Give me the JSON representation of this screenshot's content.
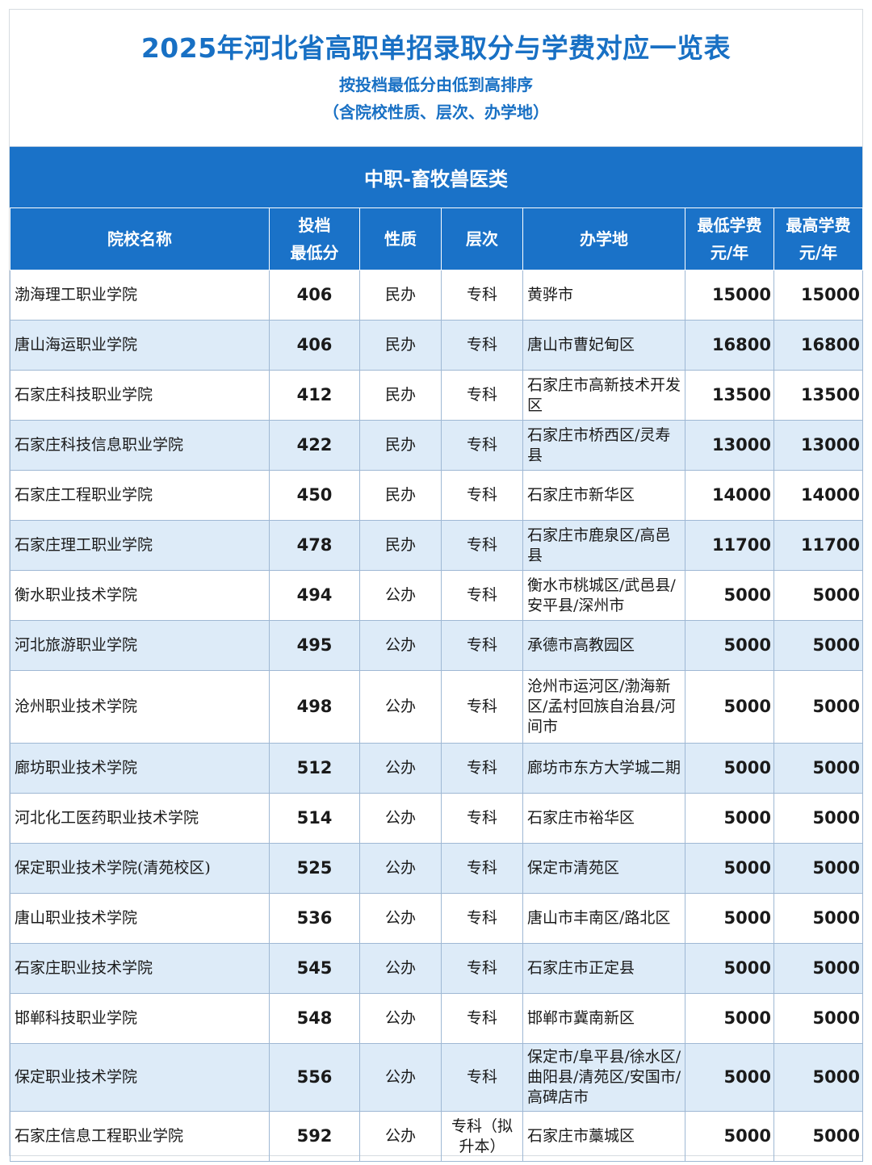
{
  "header": {
    "title": "2025年河北省高职单招录取分与学费对应一览表",
    "subtitle": "按投档最低分由低到高排序",
    "note": "（含院校性质、层次、办学地）"
  },
  "category": "中职-畜牧兽医类",
  "columns": {
    "name": "院校名称",
    "score_line1": "投档",
    "score_line2": "最低分",
    "nature": "性质",
    "level": "层次",
    "location": "办学地",
    "min_fee_line1": "最低学费",
    "min_fee_line2": "元/年",
    "max_fee_line1": "最高学费",
    "max_fee_line2": "元/年"
  },
  "rows": [
    {
      "name": "渤海理工职业学院",
      "score": "406",
      "nature": "民办",
      "level": "专科",
      "location": "黄骅市",
      "min_fee": "15000",
      "max_fee": "15000"
    },
    {
      "name": "唐山海运职业学院",
      "score": "406",
      "nature": "民办",
      "level": "专科",
      "location": "唐山市曹妃甸区",
      "min_fee": "16800",
      "max_fee": "16800"
    },
    {
      "name": "石家庄科技职业学院",
      "score": "412",
      "nature": "民办",
      "level": "专科",
      "location": "石家庄市高新技术开发区",
      "min_fee": "13500",
      "max_fee": "13500"
    },
    {
      "name": "石家庄科技信息职业学院",
      "score": "422",
      "nature": "民办",
      "level": "专科",
      "location": "石家庄市桥西区/灵寿县",
      "min_fee": "13000",
      "max_fee": "13000"
    },
    {
      "name": "石家庄工程职业学院",
      "score": "450",
      "nature": "民办",
      "level": "专科",
      "location": "石家庄市新华区",
      "min_fee": "14000",
      "max_fee": "14000"
    },
    {
      "name": "石家庄理工职业学院",
      "score": "478",
      "nature": "民办",
      "level": "专科",
      "location": "石家庄市鹿泉区/高邑县",
      "min_fee": "11700",
      "max_fee": "11700"
    },
    {
      "name": "衡水职业技术学院",
      "score": "494",
      "nature": "公办",
      "level": "专科",
      "location": "衡水市桃城区/武邑县/安平县/深州市",
      "min_fee": "5000",
      "max_fee": "5000"
    },
    {
      "name": "河北旅游职业学院",
      "score": "495",
      "nature": "公办",
      "level": "专科",
      "location": "承德市高教园区",
      "min_fee": "5000",
      "max_fee": "5000"
    },
    {
      "name": "沧州职业技术学院",
      "score": "498",
      "nature": "公办",
      "level": "专科",
      "location": "沧州市运河区/渤海新区/孟村回族自治县/河间市",
      "min_fee": "5000",
      "max_fee": "5000"
    },
    {
      "name": "廊坊职业技术学院",
      "score": "512",
      "nature": "公办",
      "level": "专科",
      "location": "廊坊市东方大学城二期",
      "min_fee": "5000",
      "max_fee": "5000"
    },
    {
      "name": "河北化工医药职业技术学院",
      "score": "514",
      "nature": "公办",
      "level": "专科",
      "location": "石家庄市裕华区",
      "min_fee": "5000",
      "max_fee": "5000"
    },
    {
      "name": "保定职业技术学院(清苑校区)",
      "score": "525",
      "nature": "公办",
      "level": "专科",
      "location": "保定市清苑区",
      "min_fee": "5000",
      "max_fee": "5000"
    },
    {
      "name": "唐山职业技术学院",
      "score": "536",
      "nature": "公办",
      "level": "专科",
      "location": "唐山市丰南区/路北区",
      "min_fee": "5000",
      "max_fee": "5000"
    },
    {
      "name": "石家庄职业技术学院",
      "score": "545",
      "nature": "公办",
      "level": "专科",
      "location": "石家庄市正定县",
      "min_fee": "5000",
      "max_fee": "5000"
    },
    {
      "name": "邯郸科技职业学院",
      "score": "548",
      "nature": "公办",
      "level": "专科",
      "location": "邯郸市冀南新区",
      "min_fee": "5000",
      "max_fee": "5000"
    },
    {
      "name": "保定职业技术学院",
      "score": "556",
      "nature": "公办",
      "level": "专科",
      "location": "保定市/阜平县/徐水区/曲阳县/清苑区/安国市/高碑店市",
      "min_fee": "5000",
      "max_fee": "5000"
    },
    {
      "name": "石家庄信息工程职业学院",
      "score": "592",
      "nature": "公办",
      "level": "专科（拟升本）",
      "location": "石家庄市藁城区",
      "min_fee": "5000",
      "max_fee": "5000"
    }
  ]
}
